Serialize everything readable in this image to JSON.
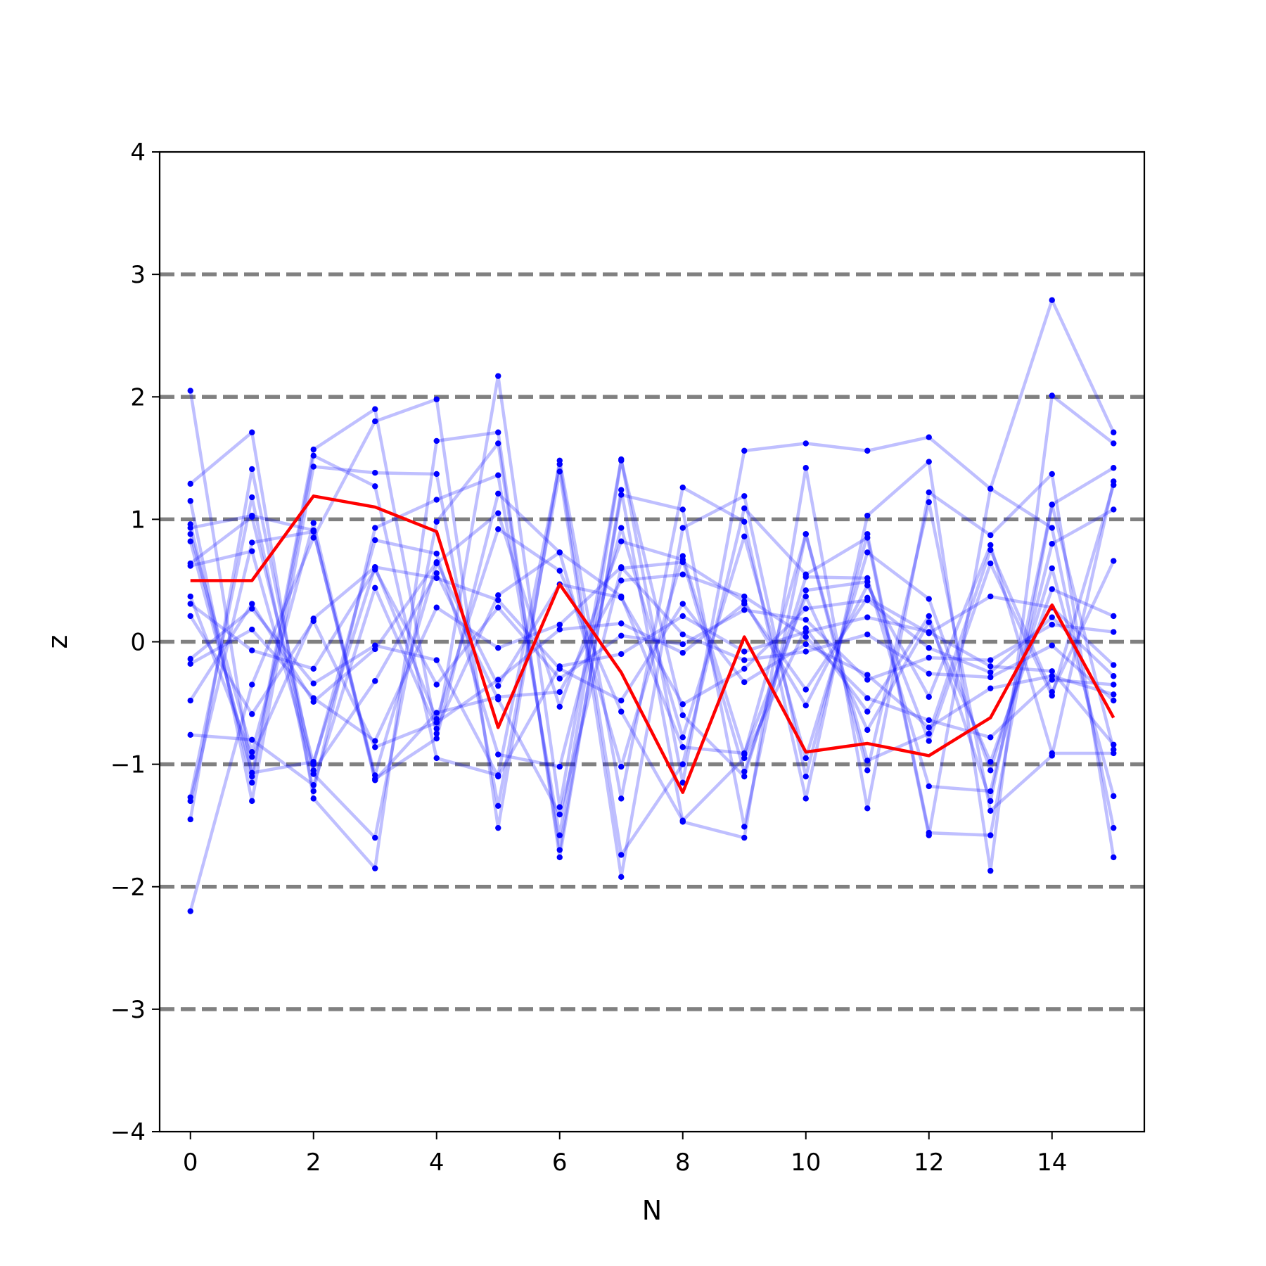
{
  "chart_data": {
    "type": "line",
    "title": "",
    "xlabel": "N",
    "ylabel": "z",
    "xlim": [
      -0.5,
      15.5
    ],
    "ylim": [
      -4,
      4
    ],
    "x_ticks": [
      0,
      2,
      4,
      6,
      8,
      10,
      12,
      14
    ],
    "y_ticks": [
      -4,
      -3,
      -2,
      -1,
      0,
      1,
      2,
      3,
      4
    ],
    "x_tick_labels": [
      "0",
      "2",
      "4",
      "6",
      "8",
      "10",
      "12",
      "14"
    ],
    "y_tick_labels": [
      "−4",
      "−3",
      "−2",
      "−1",
      "0",
      "1",
      "2",
      "3",
      "4"
    ],
    "reference_lines": [
      -3,
      -2,
      -1,
      0,
      1,
      2,
      3
    ],
    "grid": false,
    "legend": "none",
    "colors": {
      "samples": "#0000ff",
      "highlight": "#ff0000",
      "reference": "#808080",
      "axes": "#000000"
    },
    "x": [
      0,
      1,
      2,
      3,
      4,
      5,
      6,
      7,
      8,
      9,
      10,
      11,
      12,
      13,
      14,
      15
    ],
    "highlight_series": {
      "values": [
        0.5,
        0.5,
        1.19,
        1.1,
        0.9,
        -0.7,
        0.47,
        -0.25,
        -1.23,
        0.04,
        -0.9,
        -0.83,
        -0.93,
        -0.62,
        0.3,
        -0.62
      ]
    },
    "series": [
      {
        "values": [
          2.05,
          -1.1,
          1.57,
          1.9,
          -0.75,
          2.17,
          -1.35,
          1.49,
          -1.15,
          1.56,
          1.62,
          1.56,
          1.67,
          1.25,
          2.79,
          1.71
        ]
      },
      {
        "values": [
          -2.2,
          -0.35,
          0.85,
          1.8,
          1.98,
          -1.52,
          1.48,
          -1.28,
          1.26,
          0.98,
          -1.28,
          1.03,
          1.47,
          -1.87,
          2.01,
          1.62
        ]
      },
      {
        "values": [
          1.29,
          1.71,
          -1.28,
          -1.85,
          1.64,
          1.71,
          -1.76,
          1.24,
          -1.47,
          -1.6,
          1.42,
          -1.36,
          1.22,
          0.87,
          1.37,
          -1.76
        ]
      },
      {
        "values": [
          1.15,
          -1.3,
          1.43,
          1.38,
          1.37,
          -1.34,
          1.39,
          -1.92,
          0.93,
          1.19,
          -1.1,
          0.88,
          -1.56,
          -1.58,
          1.12,
          1.42
        ]
      },
      {
        "values": [
          -1.45,
          1.41,
          -1.08,
          -1.6,
          0.98,
          1.62,
          -1.7,
          1.2,
          1.08,
          -1.51,
          0.88,
          -1.05,
          1.14,
          -1.38,
          -0.93,
          1.31
        ]
      },
      {
        "values": [
          0.96,
          -1.15,
          1.52,
          1.27,
          -0.95,
          -1.09,
          1.45,
          -1.74,
          -1.0,
          1.09,
          0.55,
          0.85,
          -1.58,
          1.25,
          0.93,
          -1.52
        ]
      },
      {
        "values": [
          -1.27,
          1.18,
          -1.22,
          0.93,
          1.16,
          1.36,
          -1.58,
          1.48,
          -0.6,
          -1.1,
          0.53,
          0.52,
          -1.18,
          -1.22,
          0.8,
          1.08
        ]
      },
      {
        "values": [
          0.88,
          -0.9,
          0.97,
          -1.12,
          -0.79,
          1.21,
          0.73,
          -1.02,
          0.7,
          -0.92,
          0.88,
          -0.97,
          -0.75,
          0.75,
          -0.41,
          0.66
        ]
      },
      {
        "values": [
          0.64,
          1.02,
          -1.0,
          0.83,
          0.72,
          -0.92,
          -1.02,
          0.93,
          -0.78,
          0.86,
          -0.95,
          0.73,
          0.35,
          -1.05,
          0.6,
          -1.26
        ]
      },
      {
        "values": [
          -1.3,
          0.81,
          0.9,
          -1.09,
          0.64,
          1.05,
          -0.53,
          0.82,
          0.67,
          -1.06,
          0.42,
          0.49,
          -0.81,
          0.64,
          -0.44,
          1.28
        ]
      },
      {
        "values": [
          0.82,
          -1.07,
          -0.98,
          0.61,
          -0.63,
          0.92,
          0.58,
          -0.57,
          -1.46,
          -0.95,
          0.11,
          -0.57,
          0.21,
          -1.3,
          1.12,
          -0.88
        ]
      },
      {
        "values": [
          0.62,
          0.74,
          -1.05,
          -0.32,
          0.56,
          -0.47,
          -1.41,
          0.6,
          0.65,
          0.33,
          -0.52,
          0.46,
          -0.45,
          0.79,
          -0.91,
          -0.91
        ]
      },
      {
        "values": [
          -0.76,
          -0.8,
          -1.17,
          0.44,
          -0.71,
          0.38,
          0.73,
          0.37,
          -0.86,
          -0.91,
          0.37,
          -0.72,
          0.16,
          -0.98,
          0.43,
          0.21
        ]
      },
      {
        "values": [
          0.93,
          1.03,
          0.91,
          -1.13,
          -0.58,
          -0.45,
          -0.41,
          0.5,
          0.55,
          0.37,
          0.04,
          -0.46,
          -0.64,
          -0.78,
          -0.31,
          -0.35
        ]
      },
      {
        "values": [
          0.37,
          -0.94,
          0.19,
          0.61,
          0.52,
          0.34,
          -0.22,
          -0.48,
          0.31,
          -0.33,
          -0.02,
          -0.27,
          -0.7,
          -0.38,
          -0.28,
          -0.43
        ]
      },
      {
        "values": [
          -0.48,
          0.31,
          -0.49,
          -0.06,
          0.65,
          -0.36,
          0.47,
          0.36,
          -0.51,
          -0.22,
          0.27,
          0.34,
          -0.05,
          -0.25,
          0.2,
          -0.28
        ]
      },
      {
        "values": [
          0.21,
          -0.59,
          0.17,
          -0.86,
          -0.66,
          -0.31,
          0.1,
          0.15,
          -0.09,
          0.31,
          -0.39,
          0.36,
          0.07,
          0.37,
          0.28,
          -0.19
        ]
      },
      {
        "values": [
          -0.14,
          0.27,
          -0.34,
          -0.03,
          -0.15,
          -1.1,
          -0.2,
          -0.1,
          0.21,
          -0.08,
          0.08,
          0.2,
          0.08,
          -0.2,
          -0.24,
          -0.84
        ]
      },
      {
        "values": [
          0.31,
          -0.07,
          -0.22,
          0.59,
          -0.35,
          0.28,
          -0.3,
          0.05,
          -0.02,
          0.26,
          0.18,
          -0.31,
          -0.13,
          -0.15,
          0.14,
          0.08
        ]
      },
      {
        "values": [
          -0.18,
          0.1,
          -0.46,
          -0.81,
          0.28,
          -0.05,
          0.14,
          0.61,
          0.06,
          -0.15,
          -0.08,
          0.06,
          -0.26,
          -0.29,
          -0.03,
          -0.48
        ]
      }
    ]
  }
}
